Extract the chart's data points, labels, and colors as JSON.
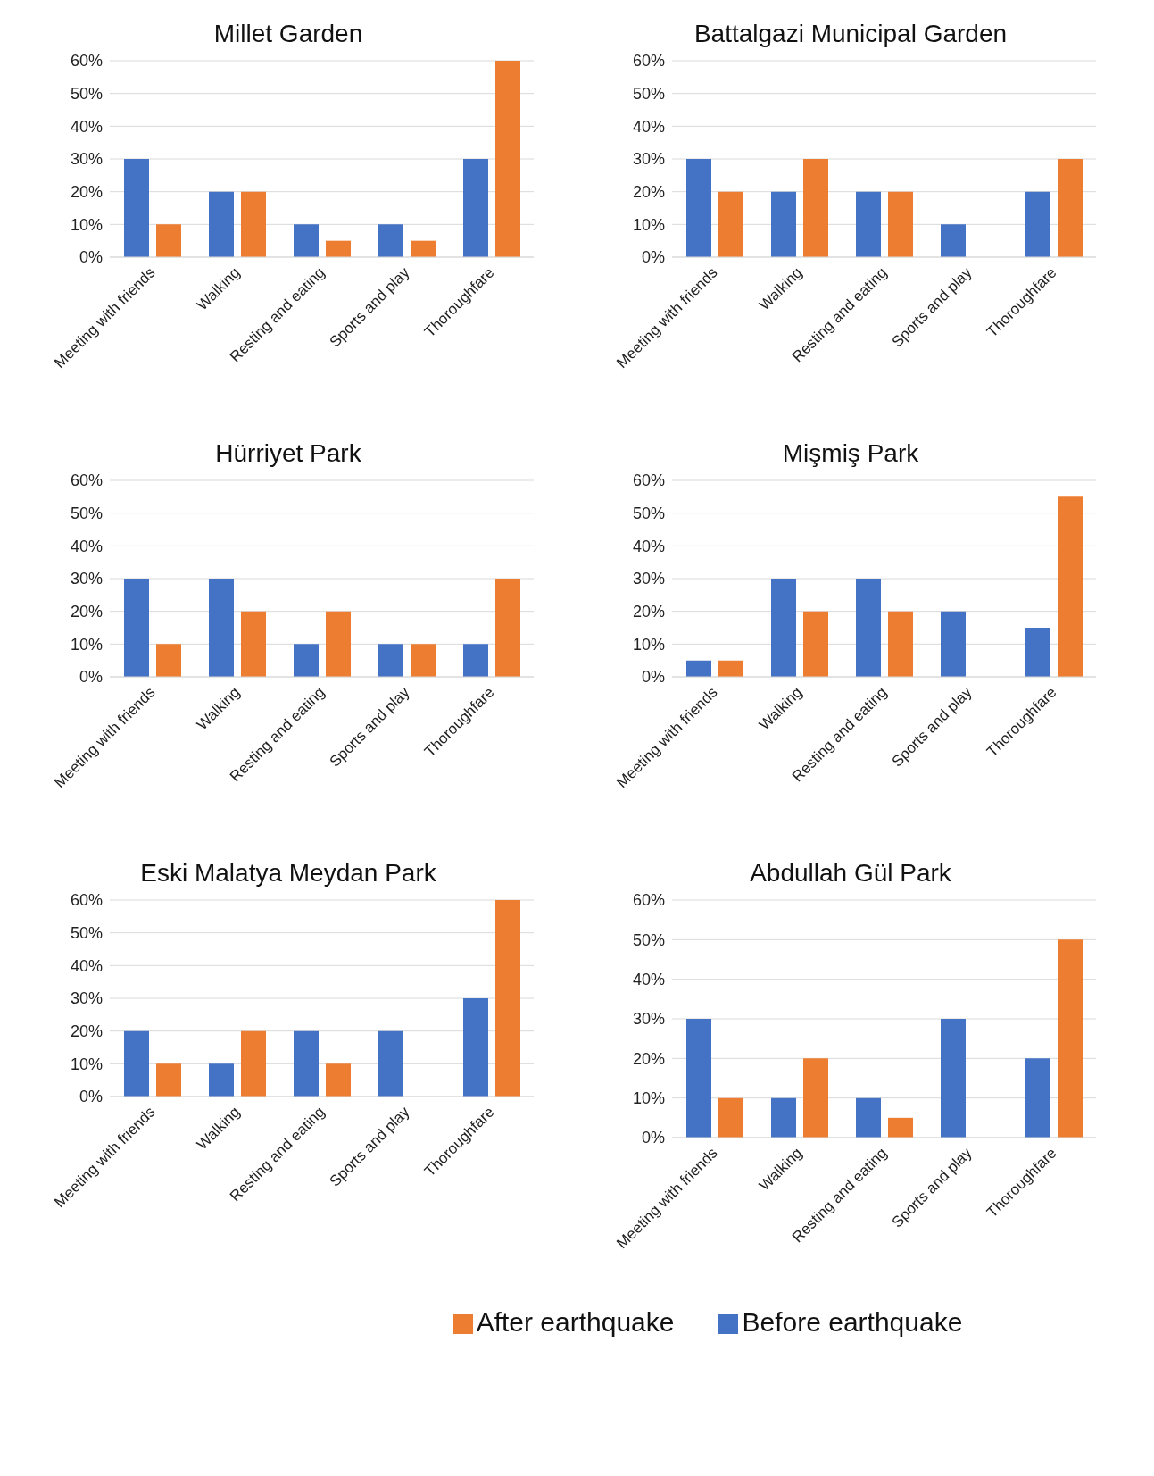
{
  "chart_data": [
    {
      "type": "bar",
      "title": "Millet Garden",
      "categories": [
        "Meeting with friends",
        "Walking",
        "Resting and eating",
        "Sports and play",
        "Thoroughfare"
      ],
      "series": [
        {
          "color": "#4472c4",
          "values": [
            30,
            20,
            10,
            10,
            30
          ]
        },
        {
          "color": "#ed7d31",
          "values": [
            10,
            20,
            5,
            5,
            60
          ]
        }
      ],
      "ylim": [
        0,
        60
      ],
      "yticks": [
        {
          "value": 0,
          "label": "0%"
        },
        {
          "value": 10,
          "label": "10%"
        },
        {
          "value": 20,
          "label": "20%"
        },
        {
          "value": 30,
          "label": "30%"
        },
        {
          "value": 40,
          "label": "40%"
        },
        {
          "value": 50,
          "label": "50%"
        },
        {
          "value": 60,
          "label": "60%"
        }
      ],
      "grid": "y"
    },
    {
      "type": "bar",
      "title": "Battalgazi Municipal Garden",
      "categories": [
        "Meeting with friends",
        "Walking",
        "Resting and eating",
        "Sports and play",
        "Thoroughfare"
      ],
      "series": [
        {
          "color": "#4472c4",
          "values": [
            30,
            20,
            20,
            10,
            20
          ]
        },
        {
          "color": "#ed7d31",
          "values": [
            20,
            30,
            20,
            0,
            30
          ]
        }
      ],
      "ylim": [
        0,
        60
      ],
      "yticks": [
        {
          "value": 0,
          "label": "0%"
        },
        {
          "value": 10,
          "label": "10%"
        },
        {
          "value": 20,
          "label": "20%"
        },
        {
          "value": 30,
          "label": "30%"
        },
        {
          "value": 40,
          "label": "40%"
        },
        {
          "value": 50,
          "label": "50%"
        },
        {
          "value": 60,
          "label": "60%"
        }
      ],
      "grid": "y"
    },
    {
      "type": "bar",
      "title": "Hürriyet Park",
      "categories": [
        "Meeting with friends",
        "Walking",
        "Resting and eating",
        "Sports and play",
        "Thoroughfare"
      ],
      "series": [
        {
          "color": "#4472c4",
          "values": [
            30,
            30,
            10,
            10,
            10
          ]
        },
        {
          "color": "#ed7d31",
          "values": [
            10,
            20,
            20,
            10,
            30
          ]
        }
      ],
      "ylim": [
        0,
        60
      ],
      "yticks": [
        {
          "value": 0,
          "label": "0%"
        },
        {
          "value": 10,
          "label": "10%"
        },
        {
          "value": 20,
          "label": "20%"
        },
        {
          "value": 30,
          "label": "30%"
        },
        {
          "value": 40,
          "label": "40%"
        },
        {
          "value": 50,
          "label": "50%"
        },
        {
          "value": 60,
          "label": "60%"
        }
      ],
      "grid": "y"
    },
    {
      "type": "bar",
      "title": "Mişmiş Park",
      "categories": [
        "Meeting with friends",
        "Walking",
        "Resting and eating",
        "Sports and play",
        "Thoroughfare"
      ],
      "series": [
        {
          "color": "#4472c4",
          "values": [
            5,
            30,
            30,
            20,
            15
          ]
        },
        {
          "color": "#ed7d31",
          "values": [
            5,
            20,
            20,
            0,
            55
          ]
        }
      ],
      "ylim": [
        0,
        60
      ],
      "yticks": [
        {
          "value": 0,
          "label": "0%"
        },
        {
          "value": 10,
          "label": "10%"
        },
        {
          "value": 20,
          "label": "20%"
        },
        {
          "value": 30,
          "label": "30%"
        },
        {
          "value": 40,
          "label": "40%"
        },
        {
          "value": 50,
          "label": "50%"
        },
        {
          "value": 60,
          "label": "60%"
        }
      ],
      "grid": "y"
    },
    {
      "type": "bar",
      "title": "Eski Malatya Meydan Park",
      "categories": [
        "Meeting with friends",
        "Walking",
        "Resting and eating",
        "Sports and play",
        "Thoroughfare"
      ],
      "series": [
        {
          "color": "#4472c4",
          "values": [
            20,
            10,
            20,
            20,
            30
          ]
        },
        {
          "color": "#ed7d31",
          "values": [
            10,
            20,
            10,
            0,
            60
          ]
        }
      ],
      "ylim": [
        0,
        60
      ],
      "yticks": [
        {
          "value": 0,
          "label": "0%"
        },
        {
          "value": 10,
          "label": "10%"
        },
        {
          "value": 20,
          "label": "20%"
        },
        {
          "value": 30,
          "label": "30%"
        },
        {
          "value": 40,
          "label": "40%"
        },
        {
          "value": 50,
          "label": "50%"
        },
        {
          "value": 60,
          "label": "60%"
        }
      ],
      "grid": "y"
    },
    {
      "type": "bar",
      "title": "Abdullah Gül Park",
      "categories": [
        "Meeting with friends",
        "Walking",
        "Resting and eating",
        "Sports and play",
        "Thoroughfare"
      ],
      "series": [
        {
          "name": "Before earthquake",
          "color": "#4472c4",
          "values": [
            30,
            10,
            10,
            30,
            20
          ]
        },
        {
          "name": "After earthquake",
          "color": "#ed7d31",
          "values": [
            10,
            20,
            5,
            0,
            50
          ]
        }
      ],
      "ylim": [
        0,
        60
      ],
      "yticks": [
        {
          "value": 0,
          "label": "0%"
        },
        {
          "value": 10,
          "label": "10%"
        },
        {
          "value": 20,
          "label": "20%"
        },
        {
          "value": 30,
          "label": "30%"
        },
        {
          "value": 40,
          "label": "40%"
        },
        {
          "value": 50,
          "label": "50%"
        },
        {
          "value": 60,
          "label": "60%"
        }
      ],
      "grid": "y",
      "legend": "bottom"
    }
  ]
}
